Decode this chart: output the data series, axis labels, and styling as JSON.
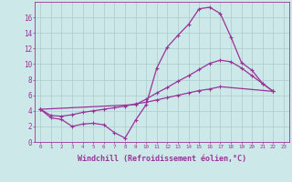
{
  "background_color": "#cde8e8",
  "line_color": "#993399",
  "grid_color": "#aacccc",
  "xlabel": "Windchill (Refroidissement éolien,°C)",
  "xlabel_fontsize": 6,
  "ylim": [
    0,
    18
  ],
  "xlim": [
    -0.5,
    23.5
  ],
  "line1_x": [
    0,
    1,
    2,
    3,
    4,
    5,
    6,
    7,
    8,
    9,
    10,
    11,
    12,
    13,
    14,
    15,
    16,
    17,
    18,
    19,
    20,
    21,
    22
  ],
  "line1_y": [
    4.2,
    3.1,
    2.9,
    2.0,
    2.3,
    2.4,
    2.2,
    1.2,
    0.5,
    2.8,
    4.8,
    9.5,
    12.2,
    13.7,
    15.1,
    17.1,
    17.3,
    16.5,
    13.5,
    10.2,
    9.2,
    7.5,
    6.5
  ],
  "line2_x": [
    0,
    1,
    2,
    3,
    4,
    5,
    6,
    7,
    8,
    9,
    10,
    11,
    12,
    13,
    14,
    15,
    16,
    17,
    22
  ],
  "line2_y": [
    4.2,
    3.4,
    3.3,
    3.5,
    3.8,
    4.0,
    4.2,
    4.4,
    4.6,
    4.9,
    5.1,
    5.4,
    5.7,
    6.0,
    6.3,
    6.6,
    6.8,
    7.1,
    6.5
  ],
  "line3_x": [
    0,
    9,
    10,
    11,
    12,
    13,
    14,
    15,
    16,
    17,
    18,
    19,
    20,
    21,
    22
  ],
  "line3_y": [
    4.2,
    4.8,
    5.5,
    6.3,
    7.0,
    7.8,
    8.5,
    9.3,
    10.1,
    10.5,
    10.3,
    9.5,
    8.5,
    7.5,
    6.5
  ],
  "yticks": [
    0,
    2,
    4,
    6,
    8,
    10,
    12,
    14,
    16
  ],
  "linewidth": 0.9,
  "markersize": 3.0
}
